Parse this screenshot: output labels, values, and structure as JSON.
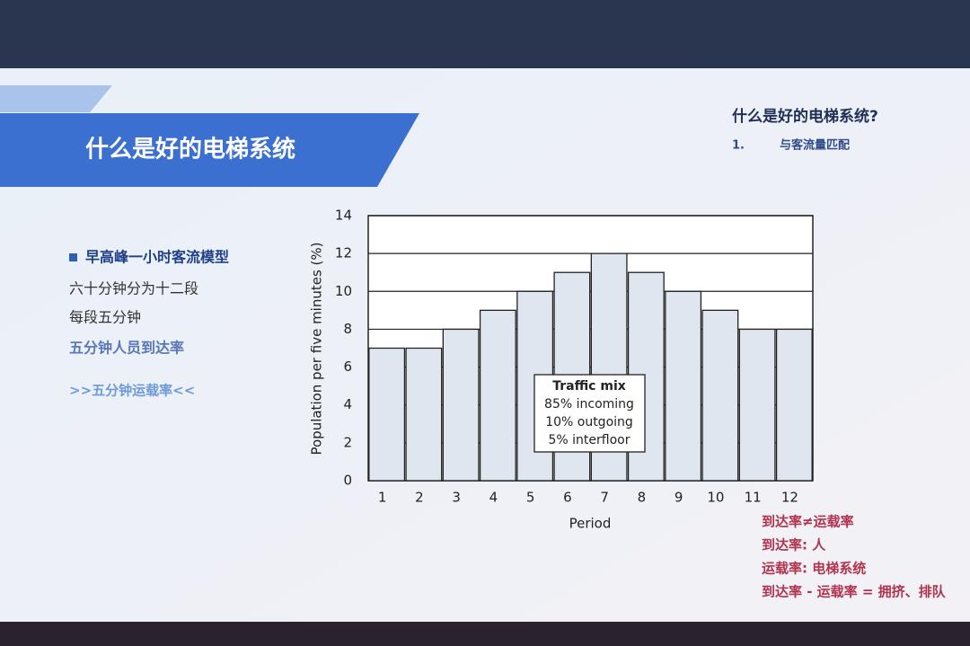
{
  "slide": {
    "title": "什么是好的电梯系统",
    "right_heading": "什么是好的电梯系统?",
    "right_items": [
      {
        "number": "1.",
        "text": "与客流量匹配"
      }
    ],
    "bullet": "早高峰一小时客流模型",
    "notes": [
      "六十分钟分为十二段",
      "每段五分钟"
    ],
    "highlight": "五分钟人员到达率",
    "emphasis": ">>五分钟运载率<<",
    "conclusions": [
      "到达率≠运载率",
      "到达率: 人",
      "运载率: 电梯系统",
      "到达率 - 运载率 = 拥挤、排队"
    ]
  },
  "chart_data": {
    "type": "bar",
    "categories": [
      "1",
      "2",
      "3",
      "4",
      "5",
      "6",
      "7",
      "8",
      "9",
      "10",
      "11",
      "12"
    ],
    "values": [
      7,
      7,
      8,
      9,
      10,
      11,
      12,
      11,
      10,
      9,
      8,
      8
    ],
    "color": "#dfe6ef",
    "ylim": [
      0,
      14
    ],
    "yticks": [
      0,
      2,
      4,
      6,
      8,
      10,
      12,
      14
    ],
    "grid": true,
    "y_label": "Population per five minutes (%)",
    "x_label": "Period",
    "annotation": {
      "title": "Traffic mix",
      "lines": [
        "85% incoming",
        "10% outgoing",
        "5% interfloor"
      ]
    }
  }
}
